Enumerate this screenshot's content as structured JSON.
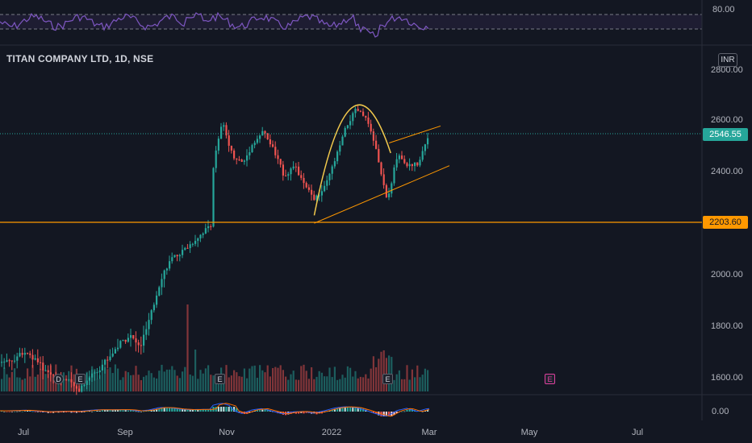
{
  "chart_data": {
    "type": "candlestick",
    "title": "TITAN COMPANY LTD, 1D, NSE",
    "currency": "INR",
    "x_tick_labels": [
      "Jul",
      "Sep",
      "Nov",
      "2022",
      "Mar",
      "May",
      "Jul"
    ],
    "y_tick_labels": [
      "2800.00",
      "2600.00",
      "2400.00",
      "2000.00",
      "1800.00",
      "1600.00"
    ],
    "rsi_tick_label": "80.00",
    "macd_tick_label": "0.00",
    "last_price": "2546.55",
    "horizontal_level": "2203.60",
    "ylim": [
      1580,
      2830
    ],
    "price_path": [
      {
        "d": "2021-06-01",
        "p": 1760
      },
      {
        "d": "2021-06-14",
        "p": 1790
      },
      {
        "d": "2021-06-28",
        "p": 1735
      },
      {
        "d": "2021-07-12",
        "p": 1710
      },
      {
        "d": "2021-07-19",
        "p": 1685
      },
      {
        "d": "2021-07-26",
        "p": 1720
      },
      {
        "d": "2021-08-02",
        "p": 1745
      },
      {
        "d": "2021-08-09",
        "p": 1775
      },
      {
        "d": "2021-08-16",
        "p": 1810
      },
      {
        "d": "2021-08-23",
        "p": 1835
      },
      {
        "d": "2021-08-30",
        "p": 1800
      },
      {
        "d": "2021-09-06",
        "p": 1880
      },
      {
        "d": "2021-09-13",
        "p": 1985
      },
      {
        "d": "2021-09-20",
        "p": 2055
      },
      {
        "d": "2021-09-27",
        "p": 2085
      },
      {
        "d": "2021-10-04",
        "p": 2120
      },
      {
        "d": "2021-10-11",
        "p": 2160
      },
      {
        "d": "2021-10-18",
        "p": 2200
      },
      {
        "d": "2021-10-19",
        "p": 2430
      },
      {
        "d": "2021-10-25",
        "p": 2590
      },
      {
        "d": "2021-11-01",
        "p": 2460
      },
      {
        "d": "2021-11-08",
        "p": 2430
      },
      {
        "d": "2021-11-15",
        "p": 2510
      },
      {
        "d": "2021-11-22",
        "p": 2555
      },
      {
        "d": "2021-11-29",
        "p": 2480
      },
      {
        "d": "2021-12-06",
        "p": 2380
      },
      {
        "d": "2021-12-13",
        "p": 2420
      },
      {
        "d": "2021-12-20",
        "p": 2340
      },
      {
        "d": "2021-12-27",
        "p": 2290
      },
      {
        "d": "2022-01-03",
        "p": 2340
      },
      {
        "d": "2022-01-10",
        "p": 2450
      },
      {
        "d": "2022-01-17",
        "p": 2570
      },
      {
        "d": "2022-01-24",
        "p": 2640
      },
      {
        "d": "2022-01-31",
        "p": 2600
      },
      {
        "d": "2022-02-07",
        "p": 2470
      },
      {
        "d": "2022-02-14",
        "p": 2280
      },
      {
        "d": "2022-02-21",
        "p": 2470
      },
      {
        "d": "2022-02-28",
        "p": 2420
      },
      {
        "d": "2022-03-07",
        "p": 2430
      },
      {
        "d": "2022-03-14",
        "p": 2546.55
      }
    ],
    "rsi": {
      "level_lines": [
        70,
        30
      ],
      "overbought_label": "80.00"
    },
    "volume_markers": [
      "D",
      "E",
      "E",
      "E",
      "E"
    ]
  },
  "colors": {
    "background": "#131722",
    "up": "#26a69a",
    "down": "#ef5350",
    "level_line": "#ff9800",
    "last_price_tag": "#26a69a",
    "rsi_line": "#7e57c2",
    "pattern_arc": "#f2c94c",
    "grid_text": "#b2b5be"
  },
  "annotations": [
    {
      "type": "horizontal-line",
      "price": 2203.6
    },
    {
      "type": "arc",
      "label": "cup"
    },
    {
      "type": "trendline",
      "role": "lower-channel"
    },
    {
      "type": "trendline",
      "role": "upper-channel"
    }
  ]
}
